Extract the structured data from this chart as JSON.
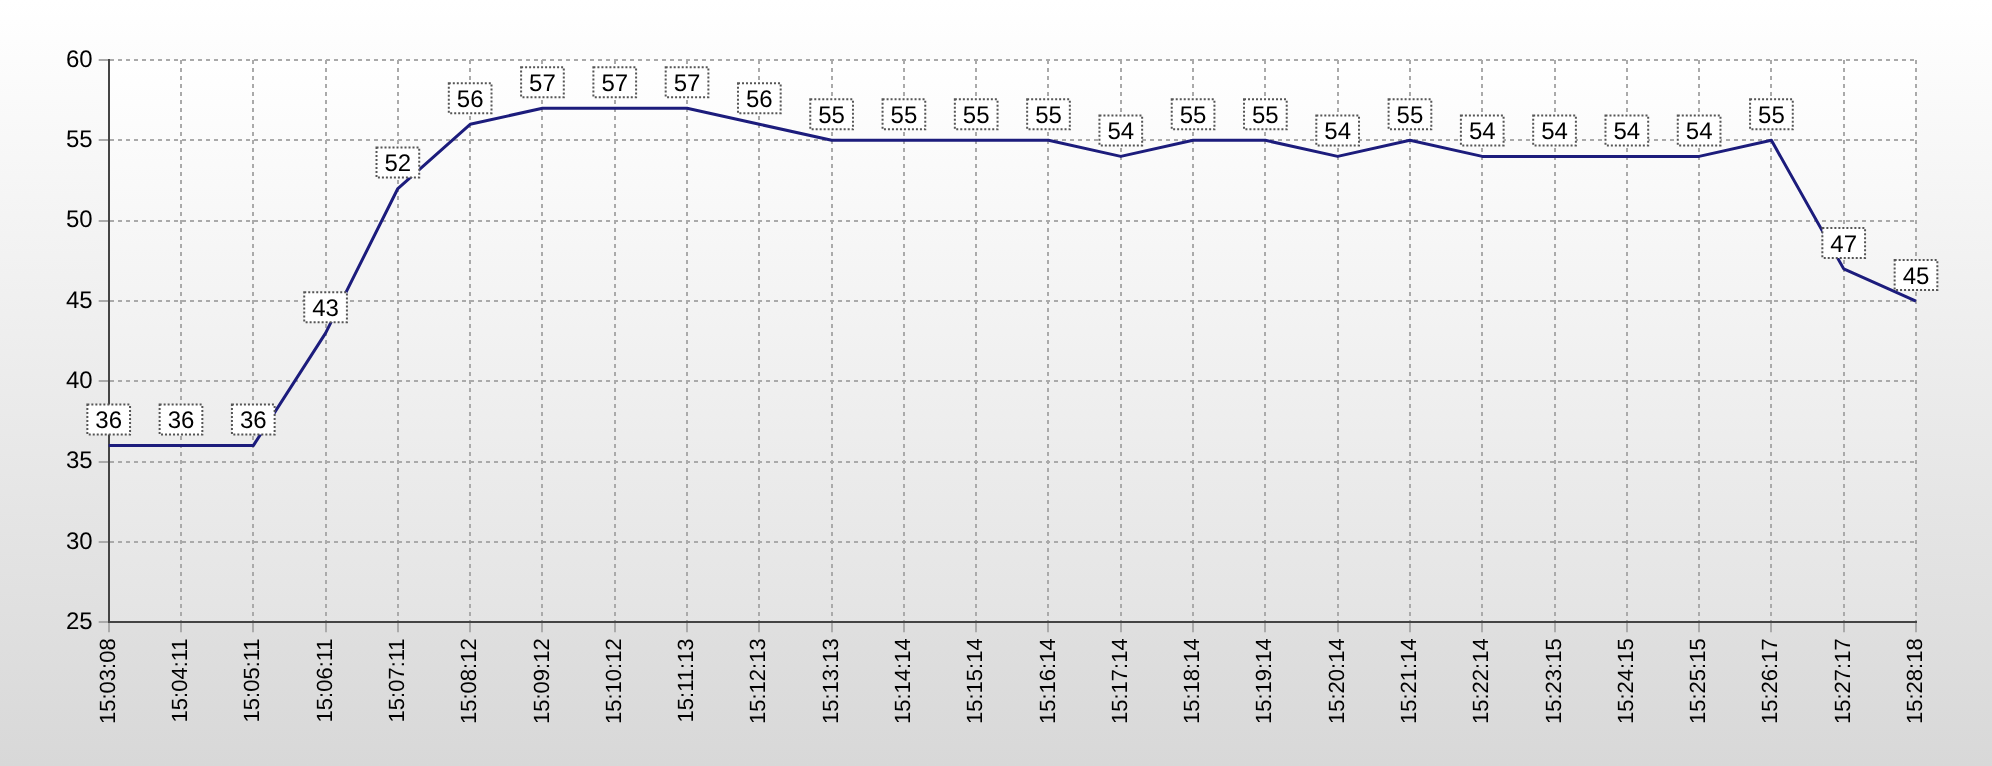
{
  "chart_data": {
    "type": "line",
    "categories": [
      "15:03:08",
      "15:04:11",
      "15:05:11",
      "15:06:11",
      "15:07:11",
      "15:08:12",
      "15:09:12",
      "15:10:12",
      "15:11:13",
      "15:12:13",
      "15:13:13",
      "15:14:14",
      "15:15:14",
      "15:16:14",
      "15:17:14",
      "15:18:14",
      "15:19:14",
      "15:20:14",
      "15:21:14",
      "15:22:14",
      "15:23:15",
      "15:24:15",
      "15:25:15",
      "15:26:17",
      "15:27:17",
      "15:28:18"
    ],
    "series": [
      {
        "color": "#1c1c7c",
        "values": [
          36,
          36,
          36,
          43,
          52,
          56,
          57,
          57,
          57,
          56,
          55,
          55,
          55,
          55,
          54,
          55,
          55,
          54,
          55,
          54,
          54,
          54,
          54,
          55,
          47,
          45
        ]
      }
    ],
    "ylim": [
      25,
      60
    ],
    "yticks": [
      25,
      30,
      35,
      40,
      45,
      50,
      55,
      60
    ],
    "grid": true,
    "legend": false,
    "marker": "none",
    "line_style": "solid",
    "data_labels": true
  }
}
